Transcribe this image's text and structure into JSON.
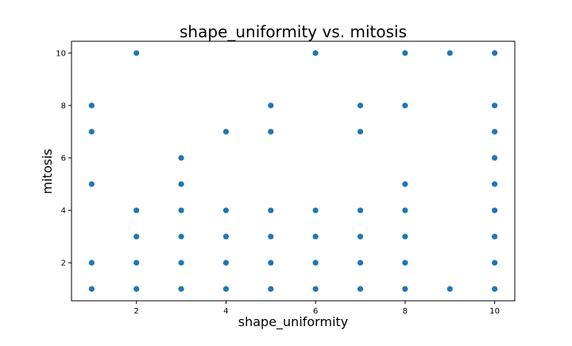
{
  "chart_data": {
    "type": "scatter",
    "title": "shape_uniformity vs. mitosis",
    "xlabel": "shape_uniformity",
    "ylabel": "mitosis",
    "xlim": [
      0.55,
      10.45
    ],
    "ylim": [
      0.55,
      10.45
    ],
    "xticks": [
      2,
      4,
      6,
      8,
      10
    ],
    "yticks": [
      2,
      4,
      6,
      8,
      10
    ],
    "grid": false,
    "marker_color": "#1f77b4",
    "points": [
      {
        "x": 1,
        "y": 1
      },
      {
        "x": 1,
        "y": 2
      },
      {
        "x": 1,
        "y": 5
      },
      {
        "x": 1,
        "y": 7
      },
      {
        "x": 1,
        "y": 8
      },
      {
        "x": 2,
        "y": 1
      },
      {
        "x": 2,
        "y": 2
      },
      {
        "x": 2,
        "y": 3
      },
      {
        "x": 2,
        "y": 4
      },
      {
        "x": 2,
        "y": 10
      },
      {
        "x": 3,
        "y": 1
      },
      {
        "x": 3,
        "y": 2
      },
      {
        "x": 3,
        "y": 3
      },
      {
        "x": 3,
        "y": 4
      },
      {
        "x": 3,
        "y": 5
      },
      {
        "x": 3,
        "y": 6
      },
      {
        "x": 4,
        "y": 1
      },
      {
        "x": 4,
        "y": 2
      },
      {
        "x": 4,
        "y": 3
      },
      {
        "x": 4,
        "y": 4
      },
      {
        "x": 4,
        "y": 7
      },
      {
        "x": 5,
        "y": 1
      },
      {
        "x": 5,
        "y": 2
      },
      {
        "x": 5,
        "y": 3
      },
      {
        "x": 5,
        "y": 4
      },
      {
        "x": 5,
        "y": 7
      },
      {
        "x": 5,
        "y": 8
      },
      {
        "x": 6,
        "y": 1
      },
      {
        "x": 6,
        "y": 2
      },
      {
        "x": 6,
        "y": 3
      },
      {
        "x": 6,
        "y": 4
      },
      {
        "x": 6,
        "y": 10
      },
      {
        "x": 7,
        "y": 1
      },
      {
        "x": 7,
        "y": 2
      },
      {
        "x": 7,
        "y": 3
      },
      {
        "x": 7,
        "y": 4
      },
      {
        "x": 7,
        "y": 7
      },
      {
        "x": 7,
        "y": 8
      },
      {
        "x": 8,
        "y": 1
      },
      {
        "x": 8,
        "y": 2
      },
      {
        "x": 8,
        "y": 3
      },
      {
        "x": 8,
        "y": 4
      },
      {
        "x": 8,
        "y": 5
      },
      {
        "x": 8,
        "y": 8
      },
      {
        "x": 8,
        "y": 10
      },
      {
        "x": 9,
        "y": 1
      },
      {
        "x": 9,
        "y": 10
      },
      {
        "x": 10,
        "y": 1
      },
      {
        "x": 10,
        "y": 2
      },
      {
        "x": 10,
        "y": 3
      },
      {
        "x": 10,
        "y": 4
      },
      {
        "x": 10,
        "y": 5
      },
      {
        "x": 10,
        "y": 6
      },
      {
        "x": 10,
        "y": 7
      },
      {
        "x": 10,
        "y": 8
      },
      {
        "x": 10,
        "y": 10
      }
    ]
  }
}
